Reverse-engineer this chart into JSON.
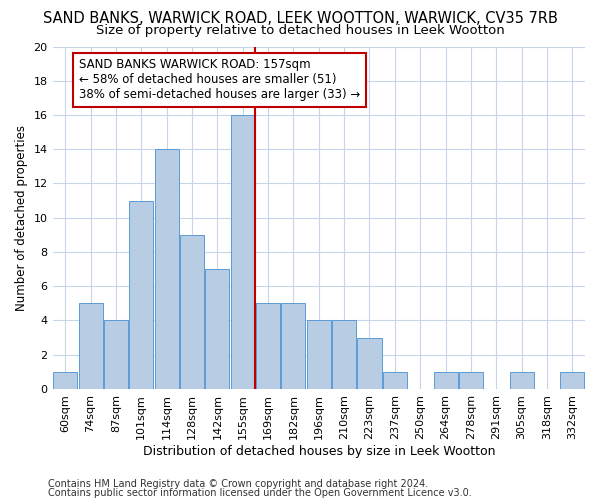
{
  "title": "SAND BANKS, WARWICK ROAD, LEEK WOOTTON, WARWICK, CV35 7RB",
  "subtitle": "Size of property relative to detached houses in Leek Wootton",
  "xlabel": "Distribution of detached houses by size in Leek Wootton",
  "ylabel": "Number of detached properties",
  "categories": [
    "60sqm",
    "74sqm",
    "87sqm",
    "101sqm",
    "114sqm",
    "128sqm",
    "142sqm",
    "155sqm",
    "169sqm",
    "182sqm",
    "196sqm",
    "210sqm",
    "223sqm",
    "237sqm",
    "250sqm",
    "264sqm",
    "278sqm",
    "291sqm",
    "305sqm",
    "318sqm",
    "332sqm"
  ],
  "values": [
    1,
    5,
    4,
    11,
    14,
    9,
    7,
    16,
    5,
    5,
    4,
    4,
    3,
    1,
    0,
    1,
    1,
    0,
    1,
    0,
    1
  ],
  "bar_color": "#b8cce4",
  "bar_edge_color": "#5b9bd5",
  "vline_color": "#c00000",
  "vline_pos": 7.5,
  "annotation_text": "SAND BANKS WARWICK ROAD: 157sqm\n← 58% of detached houses are smaller (51)\n38% of semi-detached houses are larger (33) →",
  "annotation_box_color": "#ffffff",
  "annotation_box_edge_color": "#c00000",
  "ylim": [
    0,
    20
  ],
  "yticks": [
    0,
    2,
    4,
    6,
    8,
    10,
    12,
    14,
    16,
    18,
    20
  ],
  "footer1": "Contains HM Land Registry data © Crown copyright and database right 2024.",
  "footer2": "Contains public sector information licensed under the Open Government Licence v3.0.",
  "bg_color": "#ffffff",
  "grid_color": "#c8d4e8",
  "title_fontsize": 10.5,
  "subtitle_fontsize": 9.5,
  "xlabel_fontsize": 9,
  "ylabel_fontsize": 8.5,
  "tick_fontsize": 8,
  "annotation_fontsize": 8.5,
  "footer_fontsize": 7
}
